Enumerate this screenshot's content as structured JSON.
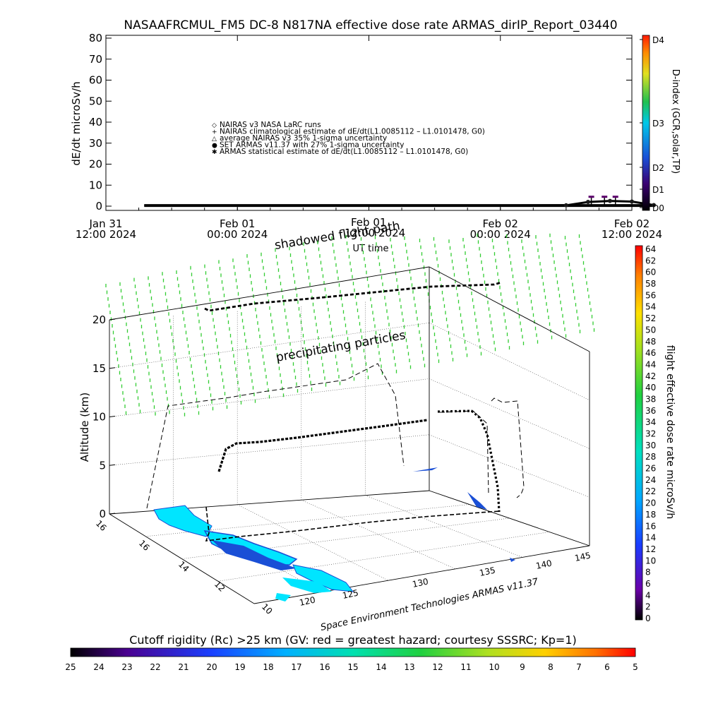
{
  "header": {
    "title": "NASAAFRCMUL_FM5 DC-8    N817NA effective dose rate ARMAS_dirIP_Report_03440"
  },
  "chart_data": [
    {
      "type": "scatter",
      "ylabel": "dE/dt microSv/h",
      "xlabel": "UT time",
      "ylim": [
        0,
        80
      ],
      "y_ticks": [
        "0",
        "10",
        "20",
        "30",
        "40",
        "50",
        "60",
        "70",
        "80"
      ],
      "x_ticks": [
        {
          "line1": "Jan 31",
          "line2": "12:00 2024"
        },
        {
          "line1": "Feb 01",
          "line2": "00:00 2024"
        },
        {
          "line1": "Feb 01",
          "line2": "12:00 2024"
        },
        {
          "line1": "Feb 02",
          "line2": "00:00 2024"
        },
        {
          "line1": "Feb 02",
          "line2": "12:00 2024"
        }
      ],
      "legend": [
        {
          "symbol": "◇",
          "text": "NAIRAS v3 NASA LaRC runs"
        },
        {
          "symbol": "+",
          "text": "NAIRAS climatological estimate of dE/dt(L1.0085112 – L1.0101478, G0)"
        },
        {
          "symbol": "△",
          "text": "average NAIRAS v3 35% 1-sigma uncertainty"
        },
        {
          "symbol": "●",
          "text": "SET ARMAS v11.37 with 27% 1-sigma uncertainty"
        },
        {
          "symbol": "✱",
          "text": "ARMAS statistical estimate of dE/dt(L1.0085112 – L1.0101478, G0)"
        }
      ],
      "dindex_title": "D-index (GCR,solar,TP)",
      "dindex_labels": [
        "D0",
        "D1",
        "D2",
        "D3",
        "D4"
      ],
      "flight_span_hours": [
        -8.5,
        38.0
      ],
      "series": [
        {
          "name": "SET ARMAS v11.37 with 27% 1-sigma uncertainty",
          "x_hours": [
            -8.5,
            -4,
            0,
            6,
            12,
            18,
            24,
            30,
            32,
            34,
            36,
            38
          ],
          "values": [
            0.3,
            0.3,
            0.3,
            0.3,
            0.3,
            0.3,
            0.3,
            0.4,
            2.0,
            2.5,
            2.2,
            0.5
          ]
        }
      ],
      "spikes_hours": [
        32.3,
        33.5,
        34.5
      ]
    },
    {
      "type": "scatter",
      "zlabel": "Altitude (km)",
      "z_ticks": [
        "0",
        "5",
        "10",
        "15",
        "20"
      ],
      "y_ticks": [
        "16",
        "14",
        "12",
        "10"
      ],
      "x_ticks": [
        "120",
        "125",
        "130",
        "135",
        "140",
        "145"
      ],
      "labels": {
        "shadowed_path": "shadowed flight path",
        "overlay_feb": "Feb 01",
        "overlay_time": "12:00 2024",
        "precipitating": "precipitating particles",
        "credit": "Space Environment Technologies ARMAS v11.37"
      },
      "colorbar_title": "flight effective dose rate microSv/h",
      "colorbar_ticks": [
        "0",
        "2",
        "4",
        "6",
        "8",
        "10",
        "12",
        "14",
        "16",
        "18",
        "20",
        "22",
        "24",
        "26",
        "28",
        "30",
        "32",
        "34",
        "36",
        "38",
        "40",
        "42",
        "44",
        "46",
        "48",
        "50",
        "52",
        "54",
        "56",
        "58",
        "60",
        "62",
        "64"
      ],
      "colorbar_range": [
        0,
        64
      ],
      "cutoff_title": "Cutoff rigidity (Rc) >25 km (GV: red = greatest hazard; courtesy SSSRC; Kp=1)",
      "cutoff_ticks": [
        "25",
        "24",
        "23",
        "22",
        "21",
        "20",
        "19",
        "18",
        "17",
        "16",
        "15",
        "14",
        "13",
        "12",
        "11",
        "10",
        "9",
        "8",
        "7",
        "6",
        "5"
      ]
    }
  ],
  "colors": {
    "precip": "#33cc33",
    "land": "#00e5ff",
    "land_dark": "#1a4fd6"
  }
}
